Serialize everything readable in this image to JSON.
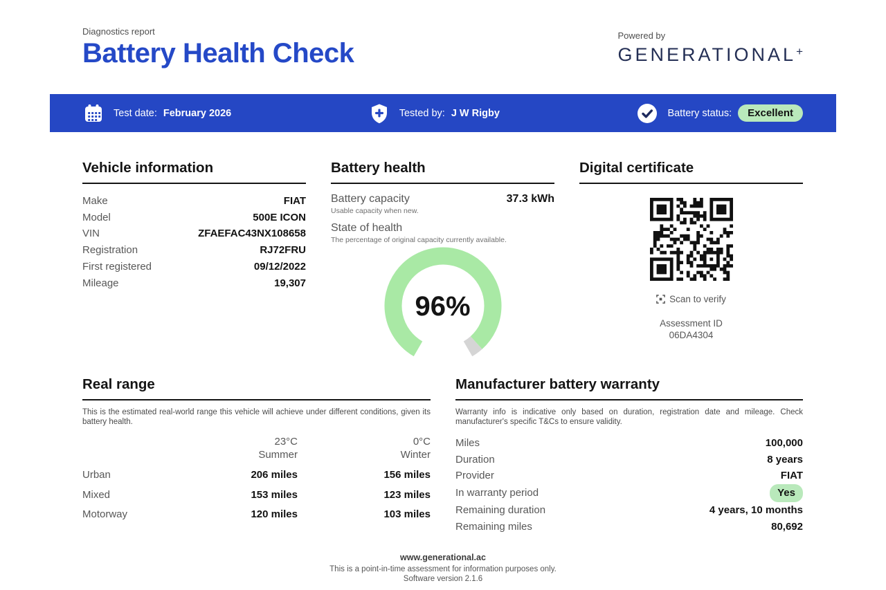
{
  "report": {
    "kicker": "Diagnostics report",
    "title": "Battery Health Check",
    "powered_by": "Powered by",
    "brand": "GENERATIONAL",
    "brand_plus": "+"
  },
  "info_bar": {
    "bar_color": "#2547c4",
    "badge_color": "#b9e9bb",
    "test_date_label": "Test date:",
    "test_date_value": "February 2026",
    "tested_by_label": "Tested by:",
    "tested_by_value": "J W Rigby",
    "battery_status_label": "Battery status:",
    "battery_status_value": "Excellent"
  },
  "vehicle_information": {
    "title": "Vehicle information",
    "rows": [
      {
        "label": "Make",
        "value": "FIAT"
      },
      {
        "label": "Model",
        "value": "500E ICON"
      },
      {
        "label": "VIN",
        "value": "ZFAEFAC43NX108658"
      },
      {
        "label": "Registration",
        "value": "RJ72FRU"
      },
      {
        "label": "First registered",
        "value": "09/12/2022"
      },
      {
        "label": "Mileage",
        "value": "19,307"
      }
    ]
  },
  "battery_health": {
    "title": "Battery health",
    "capacity_label": "Battery capacity",
    "capacity_value": "37.3 kWh",
    "capacity_note": "Usable capacity when new.",
    "soh_label": "State of health",
    "soh_note": "The percentage of original capacity currently available.",
    "gauge": {
      "percent": 96,
      "display": "96%",
      "arc_color": "#a9e9a5",
      "rest_color": "#d5d5d5"
    }
  },
  "digital_certificate": {
    "title": "Digital certificate",
    "scan_label": "Scan to verify",
    "assessment_id_label": "Assessment ID",
    "assessment_id_value": "06DA4304"
  },
  "real_range": {
    "title": "Real range",
    "description": "This is the estimated real-world range this vehicle will achieve under different conditions, given its battery health.",
    "columns": [
      {
        "temp": "23°C",
        "season": "Summer"
      },
      {
        "temp": "0°C",
        "season": "Winter"
      }
    ],
    "rows": [
      {
        "label": "Urban",
        "summer": "206 miles",
        "winter": "156 miles"
      },
      {
        "label": "Mixed",
        "summer": "153 miles",
        "winter": "123 miles"
      },
      {
        "label": "Motorway",
        "summer": "120 miles",
        "winter": "103 miles"
      }
    ]
  },
  "warranty": {
    "title": "Manufacturer battery warranty",
    "description": "Warranty info is indicative only based on duration, registration date and mileage. Check manufacturer's specific T&Cs to ensure validity.",
    "rows": [
      {
        "label": "Miles",
        "value": "100,000"
      },
      {
        "label": "Duration",
        "value": "8 years"
      },
      {
        "label": "Provider",
        "value": "FIAT"
      },
      {
        "label": "In warranty period",
        "value": "Yes"
      },
      {
        "label": "Remaining duration",
        "value": "4 years, 10 months"
      },
      {
        "label": "Remaining miles",
        "value": "80,692"
      }
    ]
  },
  "footer": {
    "website": "www.generational.ac",
    "disclaimer": "This is a point-in-time assessment for information purposes only.",
    "version": "Software version 2.1.6"
  }
}
